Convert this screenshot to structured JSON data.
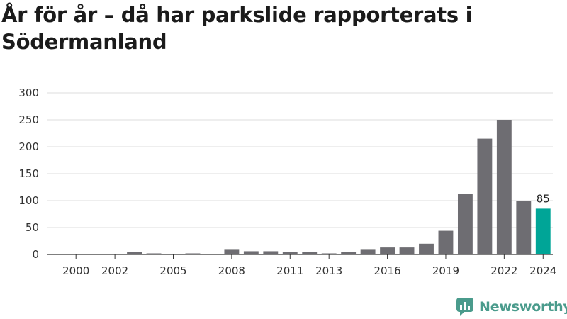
{
  "title": "År för år – då har parkslide rapporterats i Södermanland",
  "brand": {
    "name": "Newsworthy",
    "icon": "bar-chart-speech-bubble-logo",
    "color": "#4a9b8c"
  },
  "colors": {
    "bar": "#6e6d72",
    "highlight": "#00a597",
    "grid": "#dddddd",
    "axis": "#333333"
  },
  "chart_data": {
    "type": "bar",
    "title": "År för år – då har parkslide rapporterats i Södermanland",
    "xlabel": "",
    "ylabel": "",
    "ylim": [
      0,
      300
    ],
    "yticks": [
      0,
      50,
      100,
      150,
      200,
      250,
      300
    ],
    "categories": [
      "1999",
      "2000",
      "2001",
      "2002",
      "2003",
      "2004",
      "2005",
      "2006",
      "2007",
      "2008",
      "2009",
      "2010",
      "2011",
      "2012",
      "2013",
      "2014",
      "2015",
      "2016",
      "2017",
      "2018",
      "2019",
      "2020",
      "2021",
      "2022",
      "2023",
      "2024"
    ],
    "values": [
      0,
      0,
      0,
      0,
      5,
      2,
      1,
      2,
      0,
      10,
      6,
      6,
      5,
      4,
      2,
      5,
      10,
      13,
      13,
      20,
      44,
      112,
      215,
      250,
      100,
      85
    ],
    "xtick_labels": [
      "2000",
      "2002",
      "2005",
      "2008",
      "2011",
      "2013",
      "2016",
      "2019",
      "2022",
      "2024"
    ],
    "highlight": "2024",
    "data_labels": [
      {
        "category": "2024",
        "text": "85"
      }
    ],
    "grid": true,
    "legend": "none"
  }
}
